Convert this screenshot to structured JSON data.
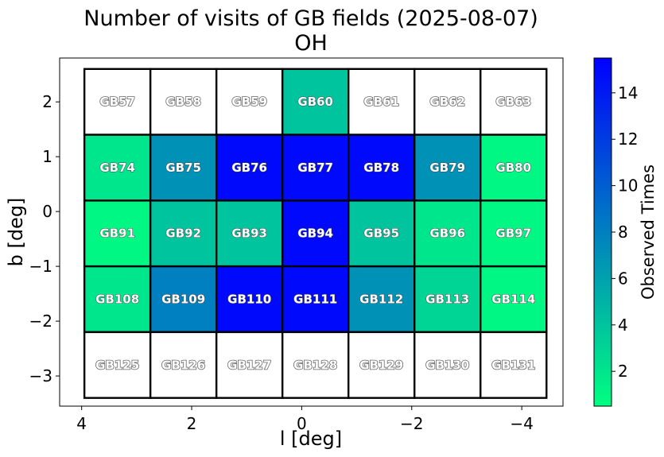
{
  "chart_data": {
    "type": "heatmap",
    "title": "Number of visits of GB fields (2025-08-07)",
    "subtitle": "OH",
    "xlabel": "l [deg]",
    "ylabel": "b [deg]",
    "xlim": [
      4.4,
      -4.75
    ],
    "ylim": [
      -3.55,
      2.8
    ],
    "x_ticks": [
      4,
      2,
      0,
      -2,
      -4
    ],
    "x_tick_labels": [
      "4",
      "2",
      "0",
      "−2",
      "−4"
    ],
    "y_ticks": [
      2,
      1,
      0,
      -1,
      -2,
      -3
    ],
    "y_tick_labels": [
      "2",
      "1",
      "0",
      "−1",
      "−2",
      "−3"
    ],
    "grid": false,
    "colorbar": {
      "label": "Observed Times",
      "vmin": 0.5,
      "vmax": 15.5,
      "ticks": [
        2,
        4,
        6,
        8,
        10,
        12,
        14
      ],
      "tick_labels": [
        "2",
        "4",
        "6",
        "8",
        "10",
        "12",
        "14"
      ],
      "colormap": "winter_r",
      "colors": {
        "low": "#00ff80",
        "high": "#0000ff",
        "unobserved": "#ffffff"
      }
    },
    "grid_l_edges": [
      3.95,
      2.75,
      1.55,
      0.35,
      -0.85,
      -2.05,
      -3.25,
      -4.45
    ],
    "grid_b_edges": [
      2.6,
      1.4,
      0.2,
      -1.0,
      -2.2,
      -3.4
    ],
    "cells": [
      [
        {
          "name": "GB57",
          "visits": 0
        },
        {
          "name": "GB58",
          "visits": 0
        },
        {
          "name": "GB59",
          "visits": 0
        },
        {
          "name": "GB60",
          "visits": 4
        },
        {
          "name": "GB61",
          "visits": 0
        },
        {
          "name": "GB62",
          "visits": 0
        },
        {
          "name": "GB63",
          "visits": 0
        }
      ],
      [
        {
          "name": "GB74",
          "visits": 2
        },
        {
          "name": "GB75",
          "visits": 7
        },
        {
          "name": "GB76",
          "visits": 15
        },
        {
          "name": "GB77",
          "visits": 15
        },
        {
          "name": "GB78",
          "visits": 15
        },
        {
          "name": "GB79",
          "visits": 7
        },
        {
          "name": "GB80",
          "visits": 1
        }
      ],
      [
        {
          "name": "GB91",
          "visits": 1
        },
        {
          "name": "GB92",
          "visits": 4
        },
        {
          "name": "GB93",
          "visits": 4
        },
        {
          "name": "GB94",
          "visits": 15
        },
        {
          "name": "GB95",
          "visits": 4
        },
        {
          "name": "GB96",
          "visits": 2
        },
        {
          "name": "GB97",
          "visits": 1
        }
      ],
      [
        {
          "name": "GB108",
          "visits": 2
        },
        {
          "name": "GB109",
          "visits": 8
        },
        {
          "name": "GB110",
          "visits": 15
        },
        {
          "name": "GB111",
          "visits": 15
        },
        {
          "name": "GB112",
          "visits": 7
        },
        {
          "name": "GB113",
          "visits": 3
        },
        {
          "name": "GB114",
          "visits": 1
        }
      ],
      [
        {
          "name": "GB125",
          "visits": 0
        },
        {
          "name": "GB126",
          "visits": 0
        },
        {
          "name": "GB127",
          "visits": 0
        },
        {
          "name": "GB128",
          "visits": 0
        },
        {
          "name": "GB129",
          "visits": 0
        },
        {
          "name": "GB130",
          "visits": 0
        },
        {
          "name": "GB131",
          "visits": 0
        }
      ]
    ]
  }
}
